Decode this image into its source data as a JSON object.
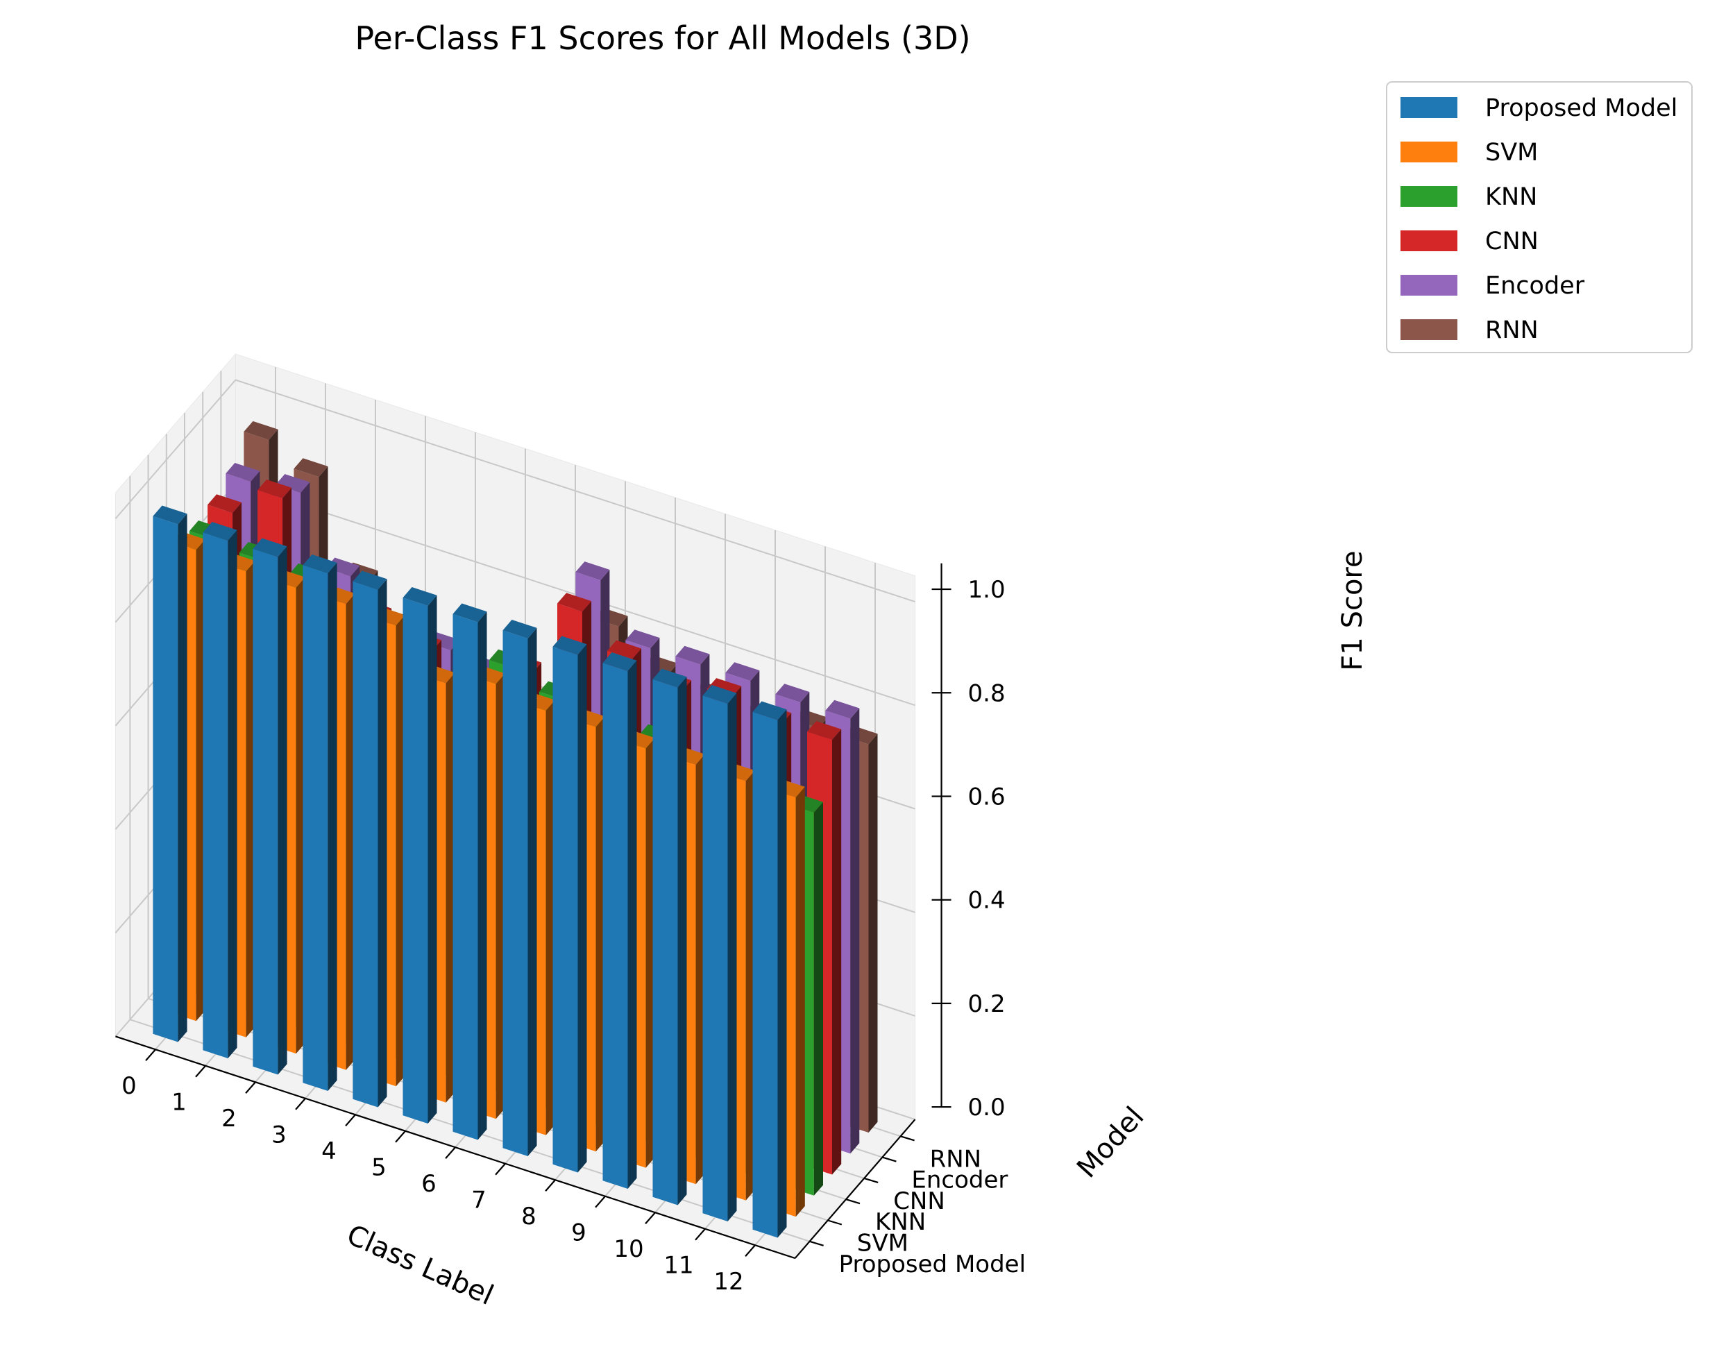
{
  "chart_data": {
    "type": "bar",
    "title": "Per-Class F1 Scores for All Models (3D)",
    "xlabel": "Class Label",
    "ylabel": "Model",
    "zlabel": "F1 Score",
    "categories": [
      "0",
      "1",
      "2",
      "3",
      "4",
      "5",
      "6",
      "7",
      "8",
      "9",
      "10",
      "11",
      "12"
    ],
    "zticks": [
      "0.0",
      "0.2",
      "0.4",
      "0.6",
      "0.8",
      "1.0"
    ],
    "zlim": [
      0,
      1.0
    ],
    "grid": true,
    "legend_position": "top-right, outside plot",
    "series": [
      {
        "name": "Proposed Model",
        "color": "#1f77b4",
        "values": [
          1.0,
          1.0,
          1.0,
          1.0,
          1.0,
          1.0,
          1.0,
          1.0,
          1.0,
          1.0,
          1.0,
          1.0,
          1.0
        ]
      },
      {
        "name": "SVM",
        "color": "#ff7f0e",
        "values": [
          0.91,
          0.9,
          0.9,
          0.9,
          0.89,
          0.81,
          0.84,
          0.82,
          0.82,
          0.81,
          0.81,
          0.81,
          0.81
        ]
      },
      {
        "name": "KNN",
        "color": "#2ca02c",
        "values": [
          0.89,
          0.88,
          0.87,
          0.82,
          0.83,
          0.7,
          0.83,
          0.8,
          0.76,
          0.78,
          0.71,
          0.73,
          0.74
        ]
      },
      {
        "name": "CNN",
        "color": "#d62728",
        "values": [
          0.9,
          0.96,
          0.78,
          0.79,
          0.76,
          0.62,
          0.78,
          0.93,
          0.87,
          0.84,
          0.86,
          0.84,
          0.84
        ]
      },
      {
        "name": "Encoder",
        "color": "#9467bd",
        "values": [
          0.92,
          0.93,
          0.8,
          0.62,
          0.72,
          0.7,
          0.61,
          0.95,
          0.85,
          0.85,
          0.85,
          0.84,
          0.84
        ]
      },
      {
        "name": "RNN",
        "color": "#8c564b",
        "values": [
          0.96,
          0.92,
          0.75,
          0.58,
          0.56,
          0.65,
          0.6,
          0.82,
          0.76,
          0.74,
          0.73,
          0.75,
          0.75
        ]
      }
    ]
  }
}
